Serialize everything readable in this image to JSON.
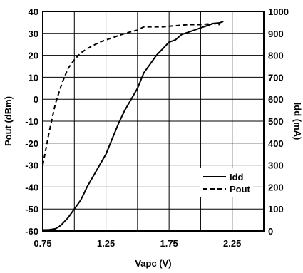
{
  "chart_data": {
    "type": "line",
    "xlabel": "Vapc (V)",
    "ylabel_left": "Pout (dBm)",
    "ylabel_right": "Idd (mA)",
    "xlim": [
      0.75,
      2.5
    ],
    "ylim_left": [
      -60,
      40
    ],
    "ylim_right": [
      0,
      1000
    ],
    "x_ticks": [
      "0.75",
      "1.25",
      "1.75",
      "2.25"
    ],
    "x_grid_values": [
      0.75,
      1.0,
      1.25,
      1.5,
      1.75,
      2.0,
      2.25,
      2.5
    ],
    "y_ticks_left": [
      "40",
      "30",
      "20",
      "10",
      "0",
      "-10",
      "-20",
      "-30",
      "-40",
      "-50",
      "-60"
    ],
    "y_ticks_right": [
      "1000",
      "900",
      "800",
      "700",
      "600",
      "500",
      "400",
      "300",
      "200",
      "100",
      "0"
    ],
    "grid": true,
    "legend_position": "bottom-right",
    "series": [
      {
        "name": "Idd",
        "axis": "right",
        "style": "solid",
        "x": [
          0.75,
          0.8,
          0.85,
          0.88,
          0.9,
          0.95,
          1.0,
          1.05,
          1.08,
          1.1,
          1.15,
          1.2,
          1.25,
          1.3,
          1.35,
          1.4,
          1.45,
          1.5,
          1.55,
          1.6,
          1.65,
          1.7,
          1.75,
          1.8,
          1.85,
          1.9,
          1.95,
          2.0,
          2.05,
          2.1,
          2.15,
          2.18
        ],
        "values": [
          5,
          6,
          10,
          20,
          30,
          60,
          100,
          140,
          175,
          200,
          250,
          300,
          350,
          420,
          490,
          550,
          600,
          650,
          720,
          760,
          800,
          830,
          860,
          870,
          895,
          905,
          915,
          925,
          935,
          945,
          948,
          955
        ]
      },
      {
        "name": "Pout",
        "axis": "left",
        "style": "dashed",
        "x": [
          0.75,
          0.8,
          0.85,
          0.9,
          0.95,
          1.0,
          1.05,
          1.1,
          1.2,
          1.3,
          1.4,
          1.5,
          1.55,
          1.6,
          1.7,
          1.8,
          1.9,
          2.0,
          2.1,
          2.15
        ],
        "values": [
          -30,
          -15,
          -2,
          7,
          14,
          18,
          21,
          23,
          26,
          28,
          30,
          31.5,
          33,
          33,
          33,
          33.5,
          34,
          34,
          34.5,
          34
        ]
      }
    ]
  }
}
